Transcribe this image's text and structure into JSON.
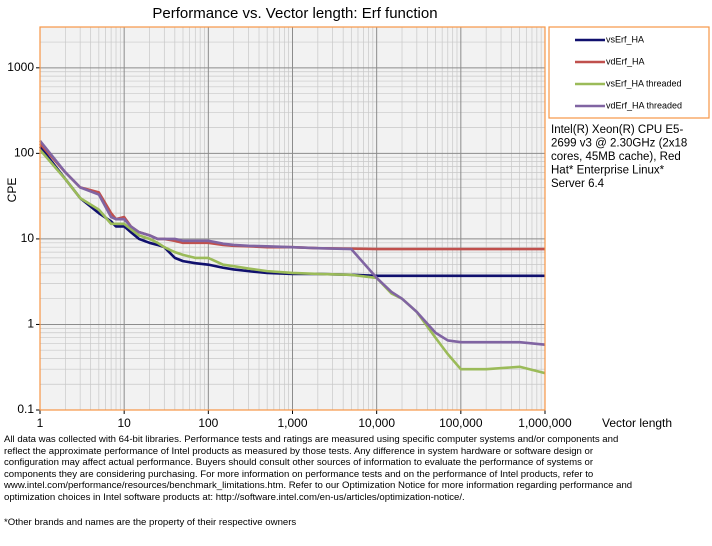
{
  "chart_data": {
    "type": "line",
    "title": "Performance vs. Vector length: Erf function",
    "ylabel": "CPE",
    "xlabel": "Vector length",
    "log_x": true,
    "log_y": true,
    "grid": true,
    "legend": "right",
    "x": [
      1,
      2,
      3,
      5,
      7,
      8,
      10,
      12,
      15,
      20,
      25,
      30,
      40,
      50,
      70,
      100,
      150,
      200,
      300,
      500,
      1000,
      2000,
      5000,
      10000,
      15000,
      20000,
      30000,
      50000,
      70000,
      100000,
      200000,
      500000,
      1000000
    ],
    "series": [
      {
        "name": "vsErf_HA",
        "color": "#10106e",
        "values": [
          120,
          50,
          30,
          20,
          16,
          14,
          14,
          12,
          10,
          9,
          8.5,
          8,
          6,
          5.5,
          5.2,
          5,
          4.6,
          4.4,
          4.2,
          4,
          3.9,
          3.9,
          3.8,
          3.7,
          3.7,
          3.7,
          3.7,
          3.7,
          3.7,
          3.7,
          3.7,
          3.7,
          3.7
        ]
      },
      {
        "name": "vdErf_HA",
        "color": "#c0504d",
        "values": [
          130,
          60,
          40,
          35,
          20,
          17,
          18,
          14,
          12,
          11,
          10,
          10,
          9.5,
          9,
          9,
          9,
          8.5,
          8.3,
          8.2,
          8,
          8,
          7.8,
          7.7,
          7.6,
          7.6,
          7.6,
          7.6,
          7.6,
          7.6,
          7.6,
          7.6,
          7.6,
          7.6
        ]
      },
      {
        "name": "vsErf_HA threaded",
        "color": "#9bbb59",
        "values": [
          110,
          50,
          30,
          22,
          15,
          15,
          15,
          13,
          11,
          10,
          9,
          8,
          7,
          6.5,
          6,
          6,
          5,
          4.8,
          4.5,
          4.2,
          4,
          3.9,
          3.8,
          3.5,
          2.3,
          2,
          1.4,
          0.7,
          0.45,
          0.3,
          0.3,
          0.32,
          0.27
        ]
      },
      {
        "name": "vdErf_HA threaded",
        "color": "#8064a2",
        "values": [
          140,
          60,
          40,
          33,
          18,
          17,
          17,
          14,
          12,
          11,
          10,
          10,
          10,
          9.5,
          9.5,
          9.5,
          8.8,
          8.5,
          8.3,
          8.2,
          8,
          7.8,
          7.6,
          3.5,
          2.4,
          2,
          1.4,
          0.8,
          0.65,
          0.62,
          0.62,
          0.62,
          0.58
        ]
      }
    ],
    "xlim": [
      1,
      1000000
    ],
    "xticks": [
      1,
      10,
      100,
      {
        "value": 1000,
        "label": "1,000"
      },
      {
        "value": 10000,
        "label": "10,000"
      },
      {
        "value": 100000,
        "label": "100,000"
      },
      {
        "value": 1000000,
        "label": "1,000,000"
      }
    ],
    "ylim": [
      0.1,
      3000
    ],
    "yticks": [
      0.1,
      1,
      10,
      100,
      1000
    ],
    "annotation": [
      "Intel(R) Xeon(R) CPU E5-",
      "2699 v3 @ 2.30GHz (2x18",
      "cores, 45MB cache), Red",
      "Hat* Enterprise Linux*",
      "Server 6.4"
    ]
  },
  "footnote": {
    "lines": [
      "All data was collected with 64-bit libraries. Performance tests and ratings are measured using specific computer systems and/or components and",
      "reflect the approximate performance of Intel products as measured by those tests.  Any difference in system hardware or software design or",
      "configuration may affect actual performance. Buyers should consult other sources of information to evaluate  the performance of systems or",
      "components they are considering purchasing. For more information on performance tests and on the performance of Intel products, refer to",
      "www.intel.com/performance/resources/benchmark_limitations.htm.  Refer to our Optimization  Notice for more information regarding performance and",
      "optimization  choices in Intel software products at: http://software.intel.com/en-us/articles/optimization-notice/."
    ],
    "trademark": "*Other brands and names are the property of their respective owners"
  }
}
